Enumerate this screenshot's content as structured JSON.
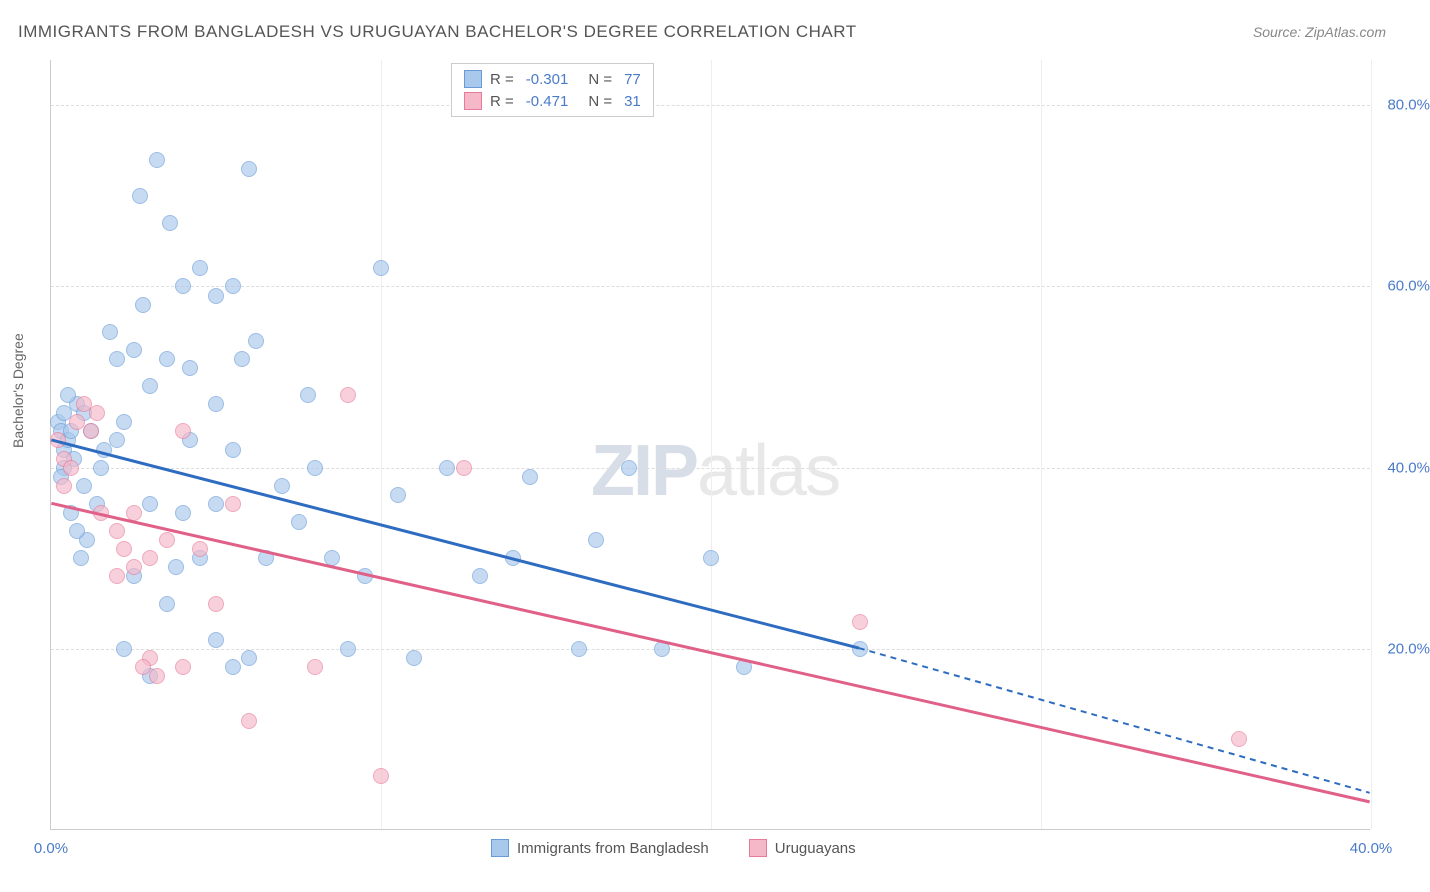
{
  "title": "IMMIGRANTS FROM BANGLADESH VS URUGUAYAN BACHELOR'S DEGREE CORRELATION CHART",
  "source": "Source: ZipAtlas.com",
  "watermark": {
    "zip": "ZIP",
    "atlas": "atlas"
  },
  "chart": {
    "type": "scatter",
    "xlim": [
      0,
      40
    ],
    "ylim": [
      0,
      85
    ],
    "x_ticks": [
      0,
      10,
      20,
      30,
      40
    ],
    "x_tick_labels": [
      "0.0%",
      "",
      "",
      "",
      "40.0%"
    ],
    "y_ticks": [
      20,
      40,
      60,
      80
    ],
    "y_tick_labels": [
      "20.0%",
      "40.0%",
      "60.0%",
      "80.0%"
    ],
    "y_axis_label": "Bachelor's Degree",
    "background_color": "#ffffff",
    "grid_color": "#dddddd",
    "series": [
      {
        "name": "Immigrants from Bangladesh",
        "fill": "#a8c8ec",
        "stroke": "#6a9bd8",
        "line_color": "#2d6cc0",
        "R": "-0.301",
        "N": "77",
        "trend": {
          "x1": 0,
          "y1": 43,
          "x2": 24.5,
          "y2": 20,
          "ext_x2": 40,
          "ext_y2": 4
        },
        "points": [
          [
            0.2,
            45
          ],
          [
            0.3,
            44
          ],
          [
            0.4,
            42
          ],
          [
            0.5,
            43
          ],
          [
            0.6,
            44
          ],
          [
            0.4,
            40
          ],
          [
            0.3,
            39
          ],
          [
            0.8,
            47
          ],
          [
            1.0,
            46
          ],
          [
            1.2,
            44
          ],
          [
            1.4,
            36
          ],
          [
            0.9,
            30
          ],
          [
            1.1,
            32
          ],
          [
            0.5,
            48
          ],
          [
            1.6,
            42
          ],
          [
            2.0,
            43
          ],
          [
            2.2,
            45
          ],
          [
            3.2,
            74
          ],
          [
            6.0,
            73
          ],
          [
            2.7,
            70
          ],
          [
            3.6,
            67
          ],
          [
            2.8,
            58
          ],
          [
            4.0,
            60
          ],
          [
            5.0,
            59
          ],
          [
            5.5,
            60
          ],
          [
            4.5,
            62
          ],
          [
            6.2,
            54
          ],
          [
            3.0,
            49
          ],
          [
            3.5,
            52
          ],
          [
            4.2,
            51
          ],
          [
            5.8,
            52
          ],
          [
            5.0,
            47
          ],
          [
            3.0,
            36
          ],
          [
            4.0,
            35
          ],
          [
            5.0,
            36
          ],
          [
            4.5,
            30
          ],
          [
            2.5,
            28
          ],
          [
            3.5,
            25
          ],
          [
            5.0,
            21
          ],
          [
            5.5,
            18
          ],
          [
            6.0,
            19
          ],
          [
            6.5,
            30
          ],
          [
            7.5,
            34
          ],
          [
            7.0,
            38
          ],
          [
            8.0,
            40
          ],
          [
            8.5,
            30
          ],
          [
            9.5,
            28
          ],
          [
            10.0,
            62
          ],
          [
            9.0,
            20
          ],
          [
            10.5,
            37
          ],
          [
            11.0,
            19
          ],
          [
            7.8,
            48
          ],
          [
            12.0,
            40
          ],
          [
            13.0,
            28
          ],
          [
            14.0,
            30
          ],
          [
            14.5,
            39
          ],
          [
            16.0,
            20
          ],
          [
            16.5,
            32
          ],
          [
            18.5,
            20
          ],
          [
            20.0,
            30
          ],
          [
            21.0,
            18
          ],
          [
            17.5,
            40
          ],
          [
            24.5,
            20
          ],
          [
            2.0,
            52
          ],
          [
            2.5,
            53
          ],
          [
            1.8,
            55
          ],
          [
            0.6,
            35
          ],
          [
            0.8,
            33
          ],
          [
            1.0,
            38
          ],
          [
            1.5,
            40
          ],
          [
            2.2,
            20
          ],
          [
            3.0,
            17
          ],
          [
            4.2,
            43
          ],
          [
            5.5,
            42
          ],
          [
            3.8,
            29
          ],
          [
            0.4,
            46
          ],
          [
            0.7,
            41
          ]
        ]
      },
      {
        "name": "Uruguayans",
        "fill": "#f5b8c8",
        "stroke": "#e87a9a",
        "line_color": "#e06088",
        "R": "-0.471",
        "N": "31",
        "trend": {
          "x1": 0,
          "y1": 36,
          "x2": 40,
          "y2": 3
        },
        "points": [
          [
            0.2,
            43
          ],
          [
            0.4,
            41
          ],
          [
            0.6,
            40
          ],
          [
            0.4,
            38
          ],
          [
            0.8,
            45
          ],
          [
            1.0,
            47
          ],
          [
            1.2,
            44
          ],
          [
            1.4,
            46
          ],
          [
            1.5,
            35
          ],
          [
            2.0,
            33
          ],
          [
            2.2,
            31
          ],
          [
            2.5,
            35
          ],
          [
            2.0,
            28
          ],
          [
            2.5,
            29
          ],
          [
            3.0,
            30
          ],
          [
            3.5,
            32
          ],
          [
            4.0,
            44
          ],
          [
            4.5,
            31
          ],
          [
            5.0,
            25
          ],
          [
            5.5,
            36
          ],
          [
            3.0,
            19
          ],
          [
            2.8,
            18
          ],
          [
            3.2,
            17
          ],
          [
            4.0,
            18
          ],
          [
            6.0,
            12
          ],
          [
            8.0,
            18
          ],
          [
            9.0,
            48
          ],
          [
            10.0,
            6
          ],
          [
            12.5,
            40
          ],
          [
            24.5,
            23
          ],
          [
            36.0,
            10
          ]
        ]
      }
    ],
    "legend_bottom": [
      {
        "label": "Immigrants from Bangladesh",
        "fill": "#a8c8ec",
        "stroke": "#6a9bd8"
      },
      {
        "label": "Uruguayans",
        "fill": "#f5b8c8",
        "stroke": "#e87a9a"
      }
    ]
  }
}
